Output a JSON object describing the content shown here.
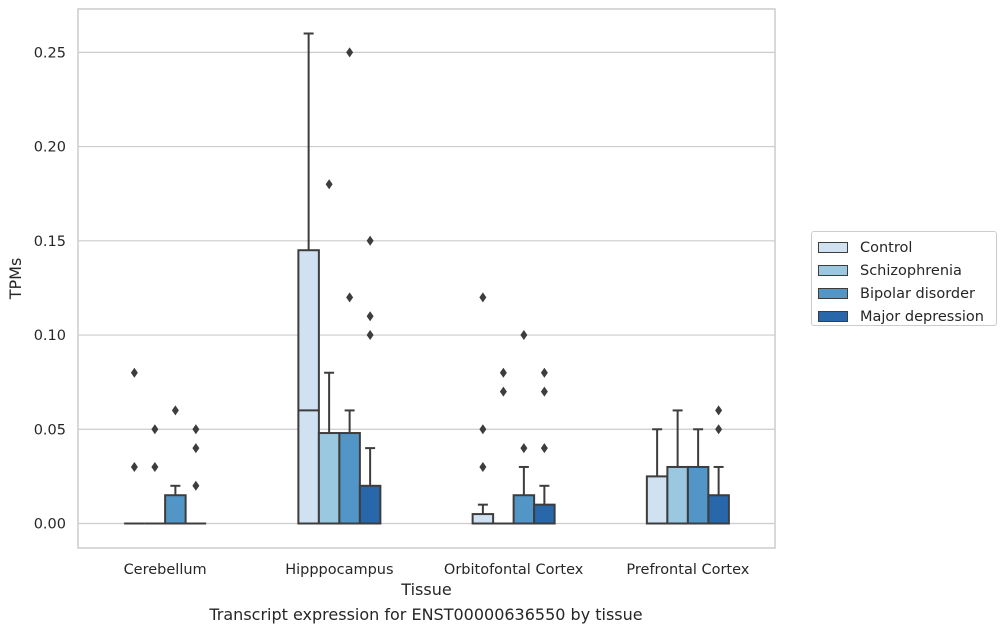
{
  "chart_data": {
    "type": "box",
    "xlabel": "Tissue",
    "ylabel": "TPMs",
    "ylim": [
      -0.013,
      0.273
    ],
    "yticks": [
      0.0,
      0.05,
      0.1,
      0.15,
      0.2,
      0.25
    ],
    "ytick_labels": [
      "0.00",
      "0.05",
      "0.10",
      "0.15",
      "0.20",
      "0.25"
    ],
    "grid": true,
    "legend_position": "right",
    "categories": [
      "Cerebellum",
      "Hipppocampus",
      "Orbitofontal Cortex",
      "Prefrontal Cortex"
    ],
    "series": [
      {
        "name": "Control",
        "color": "#d0e1f2",
        "boxes": [
          {
            "q1": 0.0,
            "median": 0.0,
            "q3": 0.0,
            "whisker_low": 0.0,
            "whisker_high": 0.0,
            "outliers": [
              0.03,
              0.08
            ]
          },
          {
            "q1": 0.0,
            "median": 0.06,
            "q3": 0.145,
            "whisker_low": 0.0,
            "whisker_high": 0.26,
            "outliers": []
          },
          {
            "q1": 0.0,
            "median": 0.0,
            "q3": 0.005,
            "whisker_low": 0.0,
            "whisker_high": 0.01,
            "outliers": [
              0.03,
              0.05,
              0.12
            ]
          },
          {
            "q1": 0.0,
            "median": 0.0,
            "q3": 0.025,
            "whisker_low": 0.0,
            "whisker_high": 0.05,
            "outliers": []
          }
        ]
      },
      {
        "name": "Schizophrenia",
        "color": "#9ac8e0",
        "boxes": [
          {
            "q1": 0.0,
            "median": 0.0,
            "q3": 0.0,
            "whisker_low": 0.0,
            "whisker_high": 0.0,
            "outliers": [
              0.03,
              0.05
            ]
          },
          {
            "q1": 0.0,
            "median": 0.0,
            "q3": 0.048,
            "whisker_low": 0.0,
            "whisker_high": 0.08,
            "outliers": [
              0.18
            ]
          },
          {
            "q1": 0.0,
            "median": 0.0,
            "q3": 0.0,
            "whisker_low": 0.0,
            "whisker_high": 0.0,
            "outliers": [
              0.07,
              0.08
            ]
          },
          {
            "q1": 0.0,
            "median": 0.0,
            "q3": 0.03,
            "whisker_low": 0.0,
            "whisker_high": 0.06,
            "outliers": []
          }
        ]
      },
      {
        "name": "Bipolar disorder",
        "color": "#5296c8",
        "boxes": [
          {
            "q1": 0.0,
            "median": 0.0,
            "q3": 0.015,
            "whisker_low": 0.0,
            "whisker_high": 0.02,
            "outliers": [
              0.06
            ]
          },
          {
            "q1": 0.0,
            "median": 0.0,
            "q3": 0.048,
            "whisker_low": 0.0,
            "whisker_high": 0.06,
            "outliers": [
              0.12,
              0.25
            ]
          },
          {
            "q1": 0.0,
            "median": 0.0,
            "q3": 0.015,
            "whisker_low": 0.0,
            "whisker_high": 0.03,
            "outliers": [
              0.04,
              0.1
            ]
          },
          {
            "q1": 0.0,
            "median": 0.0,
            "q3": 0.03,
            "whisker_low": 0.0,
            "whisker_high": 0.05,
            "outliers": []
          }
        ]
      },
      {
        "name": "Major depression",
        "color": "#2767aa",
        "boxes": [
          {
            "q1": 0.0,
            "median": 0.0,
            "q3": 0.0,
            "whisker_low": 0.0,
            "whisker_high": 0.0,
            "outliers": [
              0.02,
              0.04,
              0.05
            ]
          },
          {
            "q1": 0.0,
            "median": 0.0,
            "q3": 0.02,
            "whisker_low": 0.0,
            "whisker_high": 0.04,
            "outliers": [
              0.1,
              0.11,
              0.15
            ]
          },
          {
            "q1": 0.0,
            "median": 0.0,
            "q3": 0.01,
            "whisker_low": 0.0,
            "whisker_high": 0.02,
            "outliers": [
              0.04,
              0.07,
              0.08
            ]
          },
          {
            "q1": 0.0,
            "median": 0.0,
            "q3": 0.015,
            "whisker_low": 0.0,
            "whisker_high": 0.03,
            "outliers": [
              0.05,
              0.06
            ]
          }
        ]
      }
    ]
  },
  "caption": "Transcript expression for ENST00000636550 by tissue"
}
